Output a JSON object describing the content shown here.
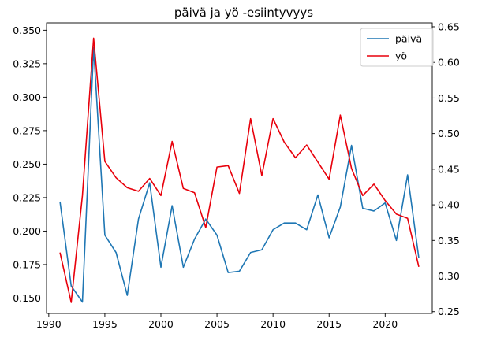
{
  "chart_data": {
    "type": "line",
    "title": "päivä ja yö -esiintyvyys",
    "xlabel": "",
    "ylabel": "",
    "x": [
      1991,
      1992,
      1993,
      1994,
      1995,
      1996,
      1997,
      1998,
      1999,
      2000,
      2001,
      2002,
      2003,
      2004,
      2005,
      2006,
      2007,
      2008,
      2009,
      2010,
      2011,
      2012,
      2013,
      2014,
      2015,
      2016,
      2017,
      2018,
      2019,
      2020,
      2021,
      2022,
      2023
    ],
    "xlim": [
      1989.8,
      2024.2
    ],
    "xticks": [
      1990,
      1995,
      2000,
      2005,
      2010,
      2015,
      2020
    ],
    "grid": false,
    "legend": "top-right",
    "series": [
      {
        "name": "päivä",
        "axis": "left",
        "color": "#1f77b4",
        "values": [
          0.222,
          0.159,
          0.147,
          0.337,
          0.197,
          0.184,
          0.152,
          0.209,
          0.236,
          0.173,
          0.219,
          0.173,
          0.194,
          0.209,
          0.197,
          0.169,
          0.17,
          0.184,
          0.186,
          0.201,
          0.206,
          0.206,
          0.201,
          0.227,
          0.195,
          0.218,
          0.264,
          0.217,
          0.215,
          0.221,
          0.193,
          0.242,
          0.18
        ]
      },
      {
        "name": "yö",
        "axis": "right",
        "color": "#e8000b",
        "values": [
          0.333,
          0.263,
          0.413,
          0.634,
          0.461,
          0.438,
          0.424,
          0.419,
          0.437,
          0.413,
          0.489,
          0.423,
          0.417,
          0.368,
          0.453,
          0.455,
          0.416,
          0.521,
          0.441,
          0.521,
          0.488,
          0.466,
          0.484,
          0.46,
          0.436,
          0.526,
          0.451,
          0.413,
          0.429,
          0.406,
          0.387,
          0.381,
          0.313
        ]
      }
    ],
    "y_left": {
      "ylim": [
        0.1385,
        0.3555
      ],
      "ticks": [
        "0.150",
        "0.175",
        "0.200",
        "0.225",
        "0.250",
        "0.275",
        "0.300",
        "0.325",
        "0.350"
      ]
    },
    "y_right": {
      "ylim": [
        0.2475,
        0.6555
      ],
      "ticks": [
        "0.25",
        "0.30",
        "0.35",
        "0.40",
        "0.45",
        "0.50",
        "0.55",
        "0.60",
        "0.65"
      ]
    }
  }
}
